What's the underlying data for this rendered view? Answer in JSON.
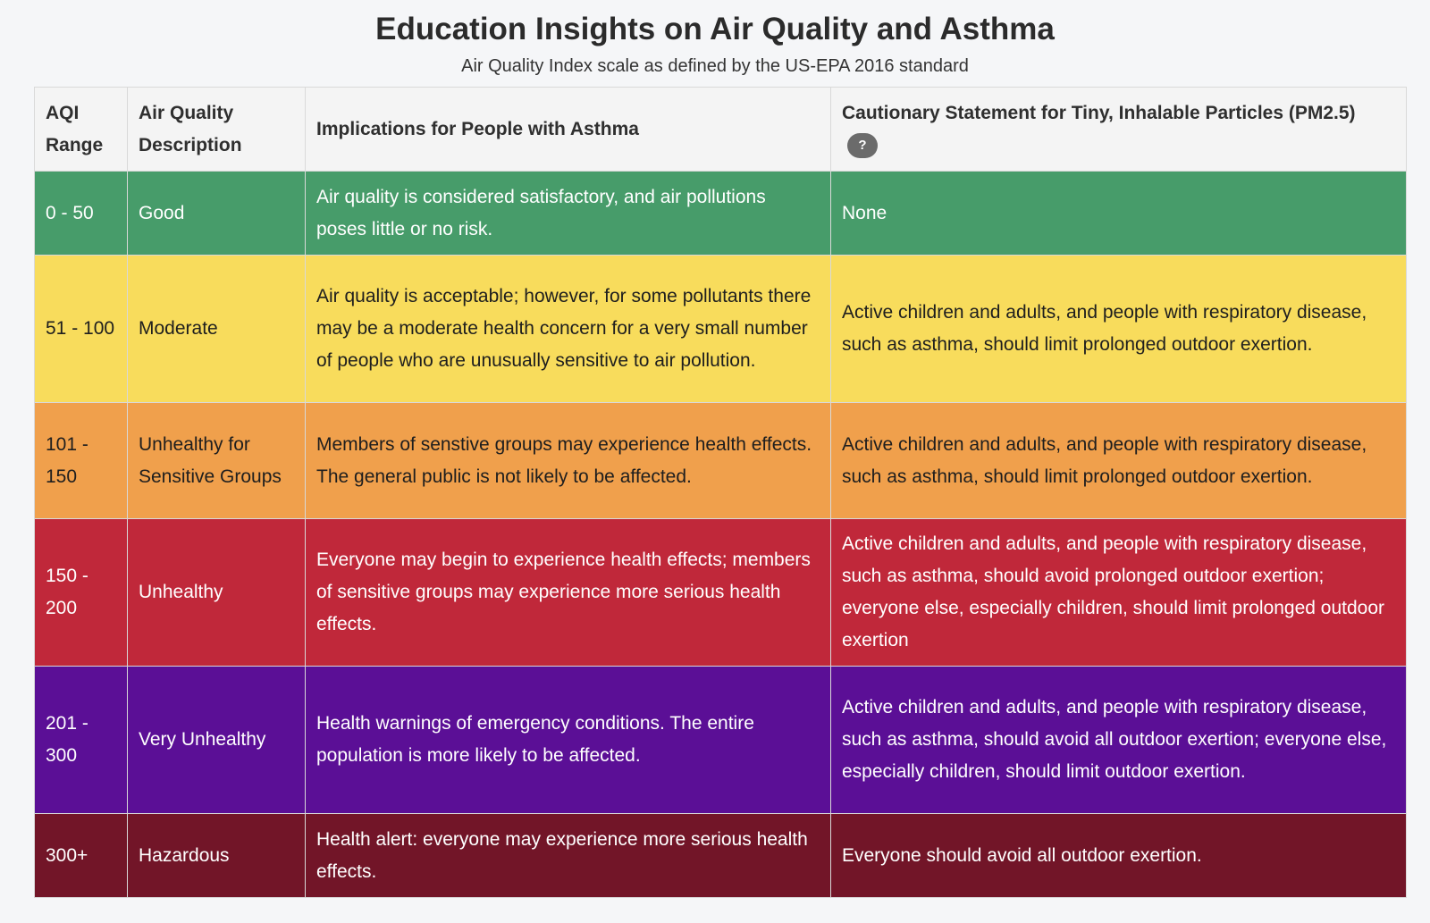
{
  "header": {
    "title": "Education Insights on Air Quality and Asthma",
    "subtitle": "Air Quality Index scale as defined by the US-EPA 2016 standard"
  },
  "table": {
    "columns": [
      "AQI Range",
      "Air Quality Description",
      "Implications for People with Asthma",
      "Cautionary Statement for Tiny, Inhalable Particles (PM2.5)"
    ],
    "help_icon": {
      "icon": "help-icon",
      "label": "?"
    },
    "rows": [
      {
        "range": "0 - 50",
        "description": "Good",
        "implications": "Air quality is considered satisfactory, and air pollutions poses little or no risk.",
        "caution": "None",
        "color": "#479c6a"
      },
      {
        "range": "51 - 100",
        "description": "Moderate",
        "implications": "Air quality is acceptable; however, for some pollutants there may be a moderate health concern for a very small number of people who are unusually sensitive to air pollution.",
        "caution": "Active children and adults, and people with respiratory disease, such as asthma, should limit prolonged outdoor exertion.",
        "color": "#f8dc5c"
      },
      {
        "range": "101 - 150",
        "description": "Unhealthy for Sensitive Groups",
        "implications": "Members of senstive groups may experience health effects. The general public is not likely to be affected.",
        "caution": "Active children and adults, and people with respiratory disease, such as asthma, should limit prolonged outdoor exertion.",
        "color": "#f0a04c"
      },
      {
        "range": "150 - 200",
        "description": "Unhealthy",
        "implications": "Everyone may begin to experience health effects; members of sensitive groups may experience more serious health effects.",
        "caution": "Active children and adults, and people with respiratory disease, such as asthma, should avoid prolonged outdoor exertion; everyone else, especially children, should limit prolonged outdoor exertion",
        "color": "#c0283a"
      },
      {
        "range": "201 - 300",
        "description": "Very Unhealthy",
        "implications": "Health warnings of emergency conditions. The entire population is more likely to be affected.",
        "caution": "Active children and adults, and people with respiratory disease, such as asthma, should avoid all outdoor exertion; everyone else, especially children, should limit outdoor exertion.",
        "color": "#5b0f96"
      },
      {
        "range": "300+",
        "description": "Hazardous",
        "implications": "Health alert: everyone may experience more serious health effects.",
        "caution": "Everyone should avoid all outdoor exertion.",
        "color": "#721528"
      }
    ]
  }
}
